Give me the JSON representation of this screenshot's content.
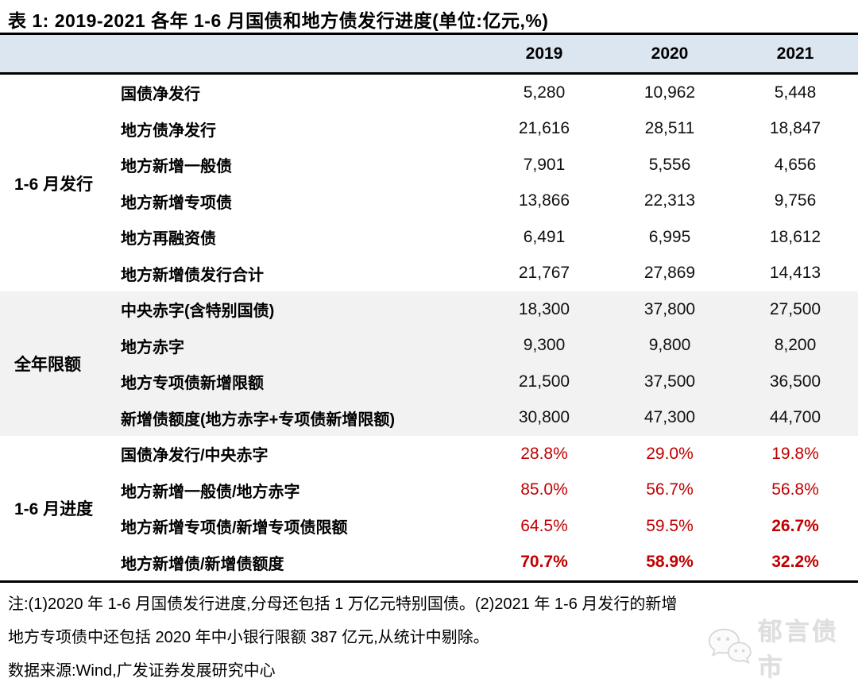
{
  "title": "表 1:  2019-2021 各年 1-6 月国债和地方债发行进度(单位:亿元,%)",
  "colors": {
    "header_bg": "#dce6f1",
    "section_alt_bg": "#f2f2f2",
    "percent_red": "#c00000"
  },
  "table": {
    "year_headers": [
      "2019",
      "2020",
      "2021"
    ],
    "sections": [
      {
        "label": "1-6 月发行",
        "bg": "#ffffff",
        "red": false,
        "rows": [
          {
            "label": "国债净发行",
            "values": [
              "5,280",
              "10,962",
              "5,448"
            ]
          },
          {
            "label": "地方债净发行",
            "values": [
              "21,616",
              "28,511",
              "18,847"
            ]
          },
          {
            "label": "地方新增一般债",
            "values": [
              "7,901",
              "5,556",
              "4,656"
            ]
          },
          {
            "label": "地方新增专项债",
            "values": [
              "13,866",
              "22,313",
              "9,756"
            ]
          },
          {
            "label": "地方再融资债",
            "values": [
              "6,491",
              "6,995",
              "18,612"
            ]
          },
          {
            "label": "地方新增债发行合计",
            "values": [
              "21,767",
              "27,869",
              "14,413"
            ]
          }
        ]
      },
      {
        "label": "全年限额",
        "bg": "#f2f2f2",
        "red": false,
        "rows": [
          {
            "label": "中央赤字(含特别国债)",
            "values": [
              "18,300",
              "37,800",
              "27,500"
            ]
          },
          {
            "label": "地方赤字",
            "values": [
              "9,300",
              "9,800",
              "8,200"
            ]
          },
          {
            "label": "地方专项债新增限额",
            "values": [
              "21,500",
              "37,500",
              "36,500"
            ]
          },
          {
            "label": "新增债额度(地方赤字+专项债新增限额)",
            "values": [
              "30,800",
              "47,300",
              "44,700"
            ]
          }
        ]
      },
      {
        "label": "1-6 月进度",
        "bg": "#ffffff",
        "red": true,
        "rows": [
          {
            "label": "国债净发行/中央赤字",
            "values": [
              "28.8%",
              "29.0%",
              "19.8%"
            ],
            "bold": [
              0,
              0,
              0
            ]
          },
          {
            "label": "地方新增一般债/地方赤字",
            "values": [
              "85.0%",
              "56.7%",
              "56.8%"
            ],
            "bold": [
              0,
              0,
              0
            ]
          },
          {
            "label": "地方新增专项债/新增专项债限额",
            "values": [
              "64.5%",
              "59.5%",
              "26.7%"
            ],
            "bold": [
              0,
              0,
              1
            ]
          },
          {
            "label": "地方新增债/新增债额度",
            "values": [
              "70.7%",
              "58.9%",
              "32.2%"
            ],
            "bold": [
              1,
              1,
              1
            ]
          }
        ]
      }
    ]
  },
  "notes": [
    "注:(1)2020 年 1-6 月国债发行进度,分母还包括 1 万亿元特别国债。(2)2021 年 1-6 月发行的新增",
    "地方专项债中还包括 2020 年中小银行限额 387 亿元,从统计中剔除。",
    "数据来源:Wind,广发证券发展研究中心"
  ],
  "watermark": {
    "text": "郁言债市",
    "icon": "wechat-icon"
  }
}
